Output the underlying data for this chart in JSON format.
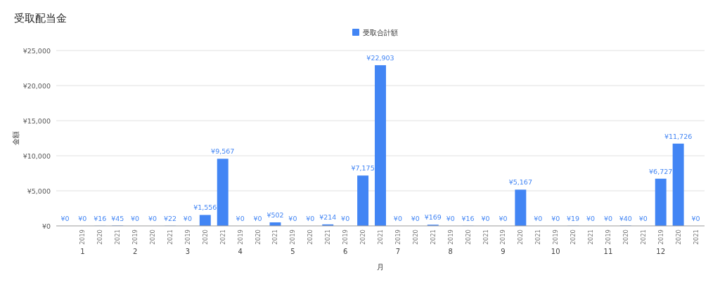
{
  "chart_data": {
    "type": "bar",
    "title": "受取配当金",
    "xlabel": "月",
    "ylabel": "金額",
    "categories": [
      null,
      "2019",
      "2020",
      "2021",
      "2019",
      "2020",
      "2021",
      "2019",
      "2020",
      "2021",
      "2019",
      "2020",
      "2021",
      "2019",
      "2020",
      "2021",
      "2019",
      "2020",
      "2021",
      "2019",
      "2020",
      "2021",
      "2019",
      "2020",
      "2021",
      "2019",
      "2020",
      "2021",
      "2019",
      "2020",
      "2021",
      "2019",
      "2020",
      "2021",
      "2019",
      "2020",
      "2021"
    ],
    "series": [
      {
        "name": "受取合計額",
        "color": "#4285f4",
        "values": [
          0,
          0,
          16,
          45,
          0,
          0,
          22,
          0,
          1556,
          9567,
          0,
          0,
          502,
          0,
          0,
          214,
          0,
          7175,
          22903,
          0,
          0,
          169,
          0,
          16,
          0,
          0,
          5167,
          0,
          0,
          19,
          0,
          0,
          40,
          0,
          6727,
          11726,
          0
        ],
        "value_labels": [
          "¥0",
          "¥0",
          "¥16",
          "¥45",
          "¥0",
          "¥0",
          "¥22",
          "¥0",
          "¥1,556",
          "¥9,567",
          "¥0",
          "¥0",
          "¥502",
          "¥0",
          "¥0",
          "¥214",
          "¥0",
          "¥7,175",
          "¥22,903",
          "¥0",
          "¥0",
          "¥169",
          "¥0",
          "¥16",
          "¥0",
          "¥0",
          "¥5,167",
          "¥0",
          "¥0",
          "¥19",
          "¥0",
          "¥0",
          "¥40",
          "¥0",
          "¥6,727",
          "¥11,726",
          "¥0"
        ]
      }
    ],
    "annotations": [
      "1",
      "2",
      "3",
      "4",
      "5",
      "6",
      "7",
      "8",
      "9",
      "10",
      "11",
      "12"
    ],
    "ylim": [
      0,
      25000
    ],
    "yticks": [
      {
        "value": 0,
        "label": "¥0"
      },
      {
        "value": 5000,
        "label": "¥5,000"
      },
      {
        "value": 10000,
        "label": "¥10,000"
      },
      {
        "value": 15000,
        "label": "¥15,000"
      },
      {
        "value": 20000,
        "label": "¥20,000"
      },
      {
        "value": 25000,
        "label": "¥25,000"
      }
    ],
    "grid": "y",
    "legend": "top"
  }
}
